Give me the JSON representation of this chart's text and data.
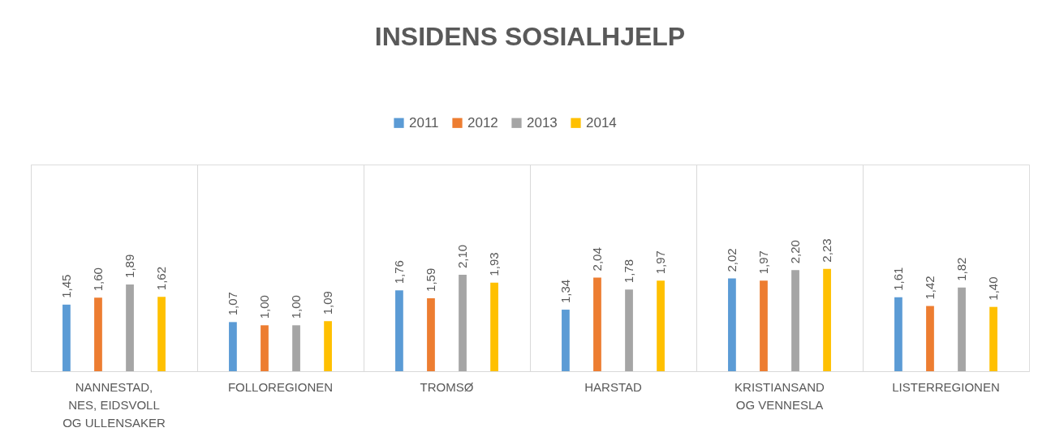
{
  "chart_data": {
    "type": "bar",
    "title": "INSIDENS SOSIALHJELP",
    "categories": [
      "NANNESTAD, NES, EIDSVOLL OG ULLENSAKER",
      "FOLLOREGIONEN",
      "TROMSØ",
      "HARSTAD",
      "KRISTIANSAND OG VENNESLA",
      "LISTERREGIONEN"
    ],
    "series": [
      {
        "name": "2011",
        "color": "#5b9bd5",
        "values": [
          1.45,
          1.07,
          1.76,
          1.34,
          2.02,
          1.61
        ],
        "value_labels": [
          "1,45",
          "1,07",
          "1,76",
          "1,34",
          "2,02",
          "1,61"
        ]
      },
      {
        "name": "2012",
        "color": "#ed7d31",
        "values": [
          1.6,
          1.0,
          1.59,
          2.04,
          1.97,
          1.42
        ],
        "value_labels": [
          "1,60",
          "1,00",
          "1,59",
          "2,04",
          "1,97",
          "1,42"
        ]
      },
      {
        "name": "2013",
        "color": "#a5a5a5",
        "values": [
          1.89,
          1.0,
          2.1,
          1.78,
          2.2,
          1.82
        ],
        "value_labels": [
          "1,89",
          "1,00",
          "2,10",
          "1,78",
          "2,20",
          "1,82"
        ]
      },
      {
        "name": "2014",
        "color": "#ffc000",
        "values": [
          1.62,
          1.09,
          1.93,
          1.97,
          2.23,
          1.4
        ],
        "value_labels": [
          "1,62",
          "1,09",
          "1,93",
          "1,97",
          "2,23",
          "1,40"
        ]
      }
    ],
    "ylim": [
      0,
      4.5
    ],
    "grid": "x",
    "legend": "top",
    "tick_labels": "x"
  }
}
